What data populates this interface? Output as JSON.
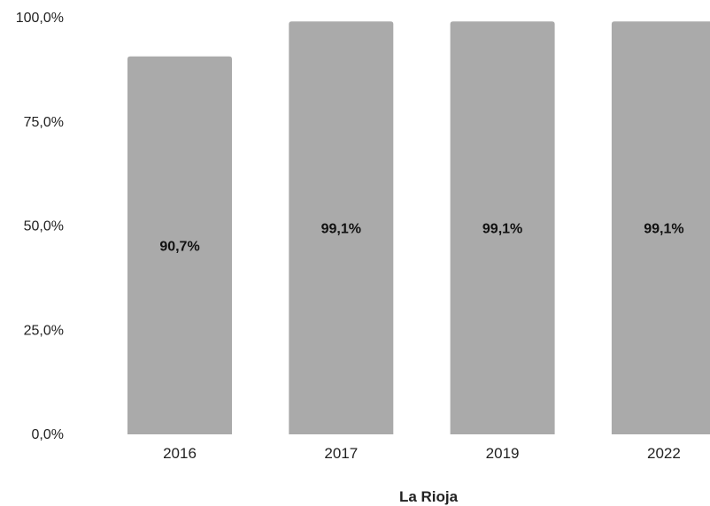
{
  "chart_data": {
    "type": "bar",
    "title": "",
    "xlabel": "La Rioja",
    "ylabel": "",
    "categories": [
      "2016",
      "2017",
      "2019",
      "2022"
    ],
    "values": [
      90.7,
      99.1,
      99.1,
      99.1
    ],
    "value_labels": [
      "90,7%",
      "99,1%",
      "99,1%",
      "99,1%"
    ],
    "ylim": [
      0,
      100
    ],
    "y_ticks": [
      0,
      25,
      50,
      75,
      100
    ],
    "y_tick_labels": [
      "0,0%",
      "25,0%",
      "50,0%",
      "75,0%",
      "100,0%"
    ],
    "grid": false,
    "legend": "none",
    "bar_color": "#aaaaaa"
  }
}
